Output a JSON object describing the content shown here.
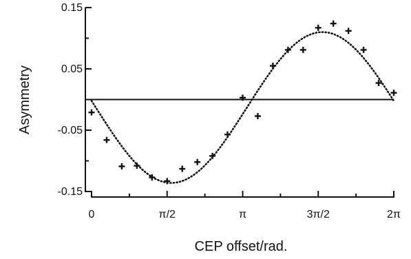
{
  "chart_data": {
    "type": "scatter",
    "title": "",
    "xlabel": "CEP offset/rad.",
    "ylabel": "Asymmetry",
    "xlim": [
      0,
      6.2832
    ],
    "ylim": [
      -0.15,
      0.15
    ],
    "grid": false,
    "x_ticks": [
      {
        "value": 0,
        "label": "0"
      },
      {
        "value": 1.5708,
        "label": "π/2"
      },
      {
        "value": 3.1416,
        "label": "π"
      },
      {
        "value": 4.7124,
        "label": "3π/2"
      },
      {
        "value": 6.2832,
        "label": "2π"
      }
    ],
    "y_ticks": [
      {
        "value": 0.15,
        "label": "0.15"
      },
      {
        "value": 0.05,
        "label": "0.05"
      },
      {
        "value": -0.05,
        "label": "-0.05"
      },
      {
        "value": -0.15,
        "label": "-0.15"
      }
    ],
    "y_minor_ticks": [
      0.1,
      0.0,
      -0.1
    ],
    "x_minor_ticks": [
      0.7854,
      2.3562,
      3.927,
      5.4978
    ],
    "reference_line_y": 0,
    "series": [
      {
        "marker": "+",
        "x": [
          0.0,
          0.3142,
          0.6283,
          0.9425,
          1.2566,
          1.5708,
          1.885,
          2.1991,
          2.5133,
          2.8274,
          3.1416,
          3.4558,
          3.7699,
          4.0841,
          4.3982,
          4.7124,
          5.0265,
          5.3407,
          5.6549,
          5.969,
          6.2832
        ],
        "y": [
          -0.021,
          -0.066,
          -0.109,
          -0.108,
          -0.127,
          -0.133,
          -0.113,
          -0.102,
          -0.092,
          -0.057,
          0.003,
          -0.027,
          0.055,
          0.081,
          0.081,
          0.117,
          0.124,
          0.112,
          0.081,
          0.027,
          0.011
        ]
      }
    ],
    "fit": {
      "style": "dotted",
      "amplitude": 0.123,
      "center": -0.013,
      "phase": 3.23
    }
  }
}
